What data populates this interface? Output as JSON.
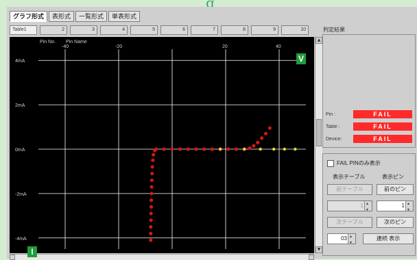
{
  "header": {
    "title_fragment": "g"
  },
  "tabs": [
    {
      "label": "グラフ形式",
      "active": true
    },
    {
      "label": "表形式",
      "active": false
    },
    {
      "label": "一覧形式",
      "active": false
    },
    {
      "label": "単表形式",
      "active": false
    }
  ],
  "table_bar": {
    "first_label": "Table1",
    "numbers": [
      "2",
      "3",
      "4",
      "5",
      "6",
      "7",
      "8",
      "9",
      "10"
    ]
  },
  "plot": {
    "header_labels": {
      "pin_no": "Pin No.",
      "pin_name": "Pin Name"
    },
    "x_ticks": [
      "-40",
      "-20",
      "20",
      "40"
    ],
    "y_ticks": [
      "4mA",
      "2mA",
      "0mA",
      "-2mA",
      "-4mA"
    ],
    "colors": {
      "background": "#000000",
      "grid": "#ffffff",
      "curve": "#cc1a14",
      "zero_points": "#e6dd2a"
    }
  },
  "chart_data": {
    "type": "scatter",
    "x_tick_labels": [
      "-40",
      "-20",
      "20",
      "40"
    ],
    "y_tick_labels": [
      "4mA",
      "2mA",
      "0mA",
      "-2mA",
      "-4mA"
    ],
    "xlim": [
      -50,
      50
    ],
    "ylim": [
      -4.5,
      4.5
    ],
    "grid": true,
    "series": [
      {
        "color": "#cc1a14",
        "points": [
          [
            -8,
            -4.1
          ],
          [
            -8,
            -3.8
          ],
          [
            -8,
            -3.5
          ],
          [
            -7.9,
            -3.2
          ],
          [
            -7.9,
            -2.9
          ],
          [
            -7.8,
            -2.6
          ],
          [
            -7.8,
            -2.3
          ],
          [
            -7.7,
            -2.0
          ],
          [
            -7.7,
            -1.7
          ],
          [
            -7.6,
            -1.4
          ],
          [
            -7.5,
            -1.1
          ],
          [
            -7.4,
            -0.8
          ],
          [
            -7.2,
            -0.5
          ],
          [
            -7.0,
            -0.25
          ],
          [
            -6.5,
            -0.05
          ],
          [
            -6,
            0
          ],
          [
            -3,
            0
          ],
          [
            0,
            0
          ],
          [
            3,
            0
          ],
          [
            6,
            0
          ],
          [
            9,
            0
          ],
          [
            12,
            0
          ],
          [
            15,
            0
          ],
          [
            18,
            0
          ],
          [
            21,
            0
          ],
          [
            24,
            0
          ],
          [
            27,
            0
          ],
          [
            29,
            0.05
          ],
          [
            30.5,
            0.15
          ],
          [
            32,
            0.3
          ],
          [
            33.5,
            0.5
          ],
          [
            35,
            0.7
          ],
          [
            36.5,
            0.95
          ]
        ]
      },
      {
        "color": "#e6dd2a",
        "points": [
          [
            18,
            0
          ],
          [
            27,
            0
          ],
          [
            33,
            0
          ],
          [
            38,
            0
          ],
          [
            42,
            0
          ],
          [
            46,
            0
          ]
        ]
      }
    ]
  },
  "badges": {
    "v": "V",
    "i": "I"
  },
  "result_panel": {
    "title": "判定結果",
    "rows": [
      {
        "label": "Pin :",
        "value": "FAIL"
      },
      {
        "label": "Table :",
        "value": "FAIL"
      },
      {
        "label": "Device:",
        "value": "FAIL"
      }
    ]
  },
  "options_panel": {
    "fail_only_label": "FAIL PINのみ表示",
    "table_label": "表示テーブル",
    "pin_label": "表示ピン",
    "prev_table": "前テーブル",
    "next_pin": "前のピン",
    "spin_left": "1",
    "spin_right": "1",
    "next_table": "次テーブル",
    "next_pin2": "次のピン",
    "count_value": "03",
    "redraw": "連続 表示"
  }
}
